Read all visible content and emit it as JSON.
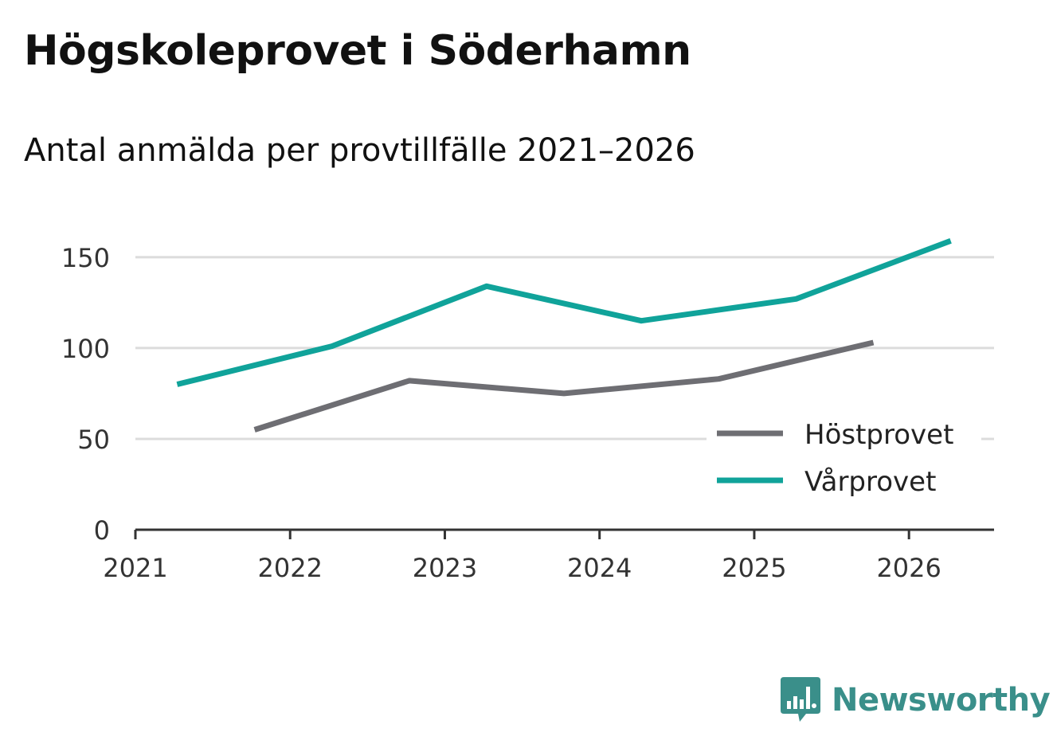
{
  "header": {
    "title": "Högskoleprovet i Söderhamn",
    "subtitle": "Antal anmälda per provtillfälle 2021–2026"
  },
  "brand": {
    "name": "Newsworthy",
    "logo_icon": "bar-chart-speech-bubble-icon",
    "color": "#3a8f8a"
  },
  "chart_data": {
    "type": "line",
    "title": "Högskoleprovet i Söderhamn",
    "subtitle": "Antal anmälda per provtillfälle 2021–2026",
    "xlabel": "",
    "ylabel": "",
    "xlim": [
      2021,
      2026.55
    ],
    "ylim": [
      0,
      160
    ],
    "x_ticks": [
      2021,
      2022,
      2023,
      2024,
      2025,
      2026
    ],
    "y_ticks": [
      0,
      50,
      100,
      150
    ],
    "grid": true,
    "legend_position": "bottom-right",
    "series": [
      {
        "name": "Höstprovet",
        "color": "#6e6e73",
        "x": [
          2021.77,
          2022.77,
          2023.77,
          2024.77,
          2025.77
        ],
        "y": [
          55,
          82,
          75,
          83,
          103
        ]
      },
      {
        "name": "Vårprovet",
        "color": "#10a39a",
        "x": [
          2021.27,
          2022.27,
          2023.27,
          2024.27,
          2025.27,
          2026.27
        ],
        "y": [
          80,
          101,
          134,
          115,
          127,
          159
        ]
      }
    ]
  }
}
